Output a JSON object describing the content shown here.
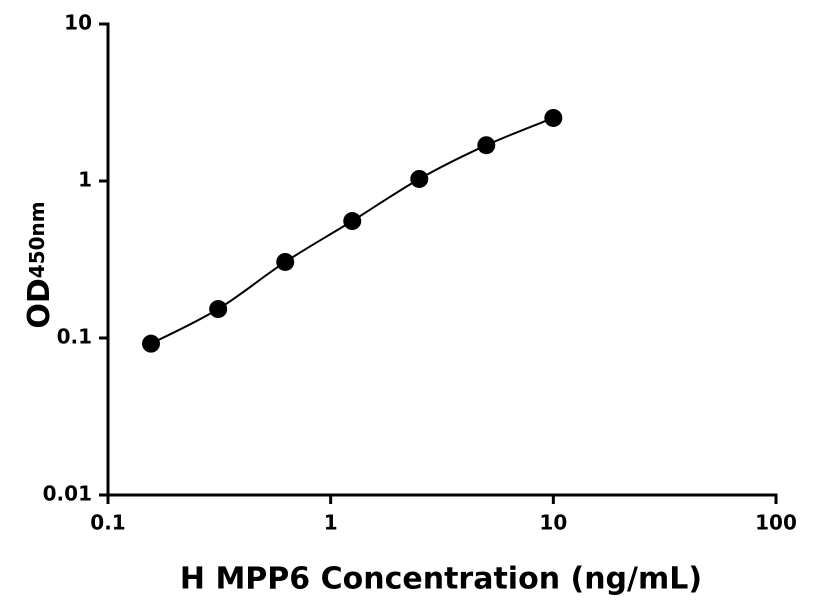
{
  "chart_data": {
    "type": "scatter",
    "x_label": "H MPP6 Concentration (ng/mL)",
    "y_label": "OD",
    "y_label_subscript": "450nm",
    "x_scale": "log",
    "y_scale": "log",
    "xlim": [
      0.1,
      100
    ],
    "xticks": [
      0.1,
      1,
      10,
      100
    ],
    "ylim": [
      0.01,
      10
    ],
    "yticks": [
      0.01,
      0.1,
      1,
      10
    ],
    "fit_line": true,
    "series": [
      {
        "color": "#000000",
        "x": [
          0.156,
          0.3125,
          0.625,
          1.25,
          2.5,
          5,
          10
        ],
        "values": [
          0.092,
          0.153,
          0.305,
          0.556,
          1.03,
          1.69,
          2.52
        ]
      }
    ]
  }
}
